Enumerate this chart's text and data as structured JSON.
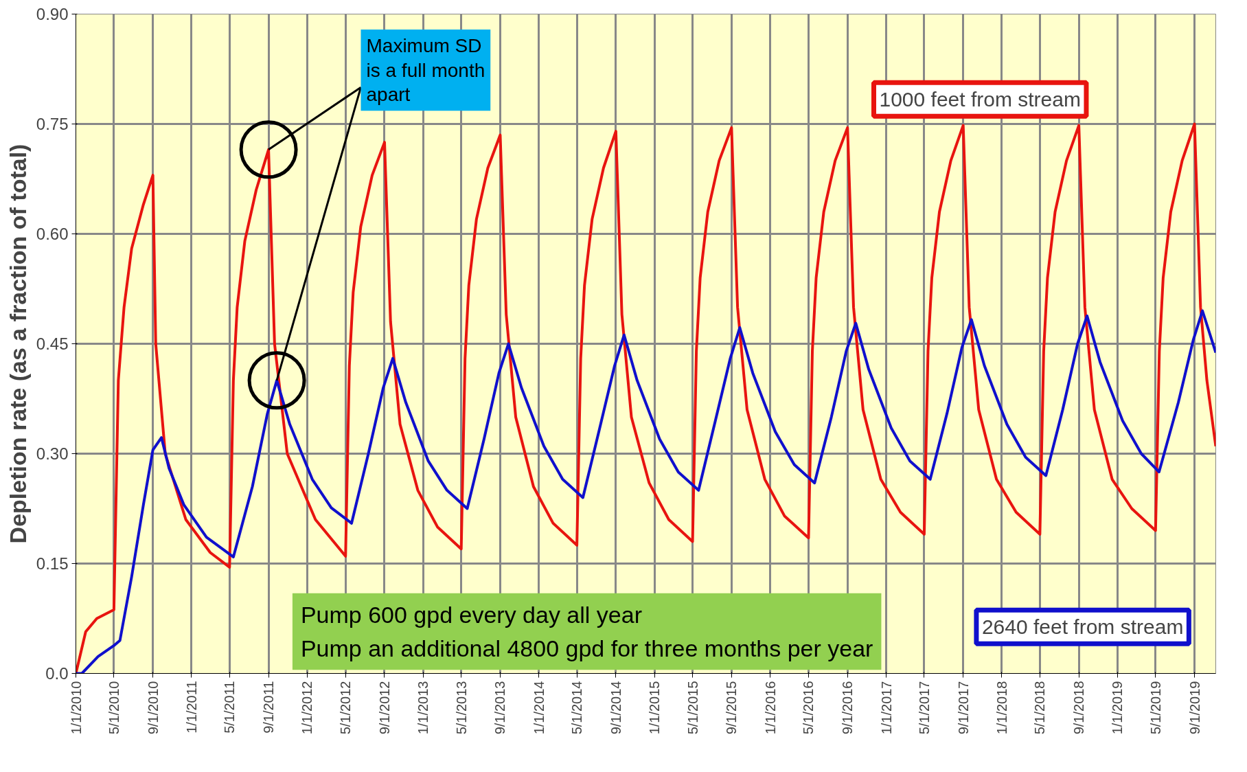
{
  "chart_data": {
    "type": "line",
    "ylabel": "Depletion rate (as a fraction of total)",
    "xlim": [
      "2010-01-01",
      "2019-11-07"
    ],
    "ylim": [
      0,
      0.9
    ],
    "yticks": [
      {
        "value": 0,
        "label": "0.0"
      },
      0.15,
      {
        "value": 0.3,
        "label": "0.30"
      },
      0.45,
      {
        "value": 0.6,
        "label": "0.60"
      },
      0.75,
      {
        "value": 0.9,
        "label": "0.90"
      }
    ],
    "xticks": [
      {
        "value": "2010-01-01",
        "label": "1/1/2010"
      },
      {
        "value": "2010-05-01",
        "label": "5/1/2010"
      },
      {
        "value": "2010-09-01",
        "label": "9/1/2010"
      },
      {
        "value": "2011-01-01",
        "label": "1/1/2011"
      },
      {
        "value": "2011-05-01",
        "label": "5/1/2011"
      },
      {
        "value": "2011-09-01",
        "label": "9/1/2011"
      },
      {
        "value": "2012-01-01",
        "label": "1/1/2012"
      },
      {
        "value": "2012-05-01",
        "label": "5/1/2012"
      },
      {
        "value": "2012-09-01",
        "label": "9/1/2012"
      },
      {
        "value": "2013-01-01",
        "label": "1/1/2013"
      },
      {
        "value": "2013-05-01",
        "label": "5/1/2013"
      },
      {
        "value": "2013-09-01",
        "label": "9/1/2013"
      },
      {
        "value": "2014-01-01",
        "label": "1/1/2014"
      },
      {
        "value": "2014-05-01",
        "label": "5/1/2014"
      },
      {
        "value": "2014-09-01",
        "label": "9/1/2014"
      },
      {
        "value": "2015-01-01",
        "label": "1/1/2015"
      },
      {
        "value": "2015-05-01",
        "label": "5/1/2015"
      },
      {
        "value": "2015-09-01",
        "label": "9/1/2015"
      },
      {
        "value": "2016-01-01",
        "label": "1/1/2016"
      },
      {
        "value": "2016-05-01",
        "label": "5/1/2016"
      },
      {
        "value": "2016-09-01",
        "label": "9/1/2016"
      },
      {
        "value": "2017-01-01",
        "label": "1/1/2017"
      },
      {
        "value": "2017-05-01",
        "label": "5/1/2017"
      },
      {
        "value": "2017-09-01",
        "label": "9/1/2017"
      },
      {
        "value": "2018-01-01",
        "label": "1/1/2018"
      },
      {
        "value": "2018-05-01",
        "label": "5/1/2018"
      },
      {
        "value": "2018-09-01",
        "label": "9/1/2018"
      },
      {
        "value": "2019-01-01",
        "label": "1/1/2019"
      },
      {
        "value": "2019-05-01",
        "label": "5/1/2019"
      },
      {
        "value": "2019-09-01",
        "label": "9/1/2019"
      }
    ],
    "grid": true,
    "legend": false,
    "marker": "none",
    "line_style": "solid",
    "series": [
      {
        "name": "1000 feet from stream",
        "color": "#e8140f",
        "x": [
          "2010-01-01",
          "2010-02-01",
          "2010-03-08",
          "2010-05-01",
          "2010-05-15",
          "2010-06-02",
          "2010-06-26",
          "2010-08-02",
          "2010-09-01",
          "2010-09-10",
          "2010-10-10",
          "2010-12-14",
          "2011-03-01",
          "2011-05-01",
          "2011-05-13",
          "2011-05-25",
          "2011-06-18",
          "2011-07-24",
          "2011-09-01",
          "2011-09-20",
          "2011-10-30",
          "2012-01-27",
          "2012-05-01",
          "2012-05-13",
          "2012-05-25",
          "2012-06-18",
          "2012-07-24",
          "2012-09-01",
          "2012-09-20",
          "2012-10-20",
          "2012-12-15",
          "2013-02-15",
          "2013-05-01",
          "2013-05-13",
          "2013-05-25",
          "2013-06-18",
          "2013-07-24",
          "2013-09-01",
          "2013-09-20",
          "2013-10-20",
          "2013-12-15",
          "2014-02-15",
          "2014-05-01",
          "2014-05-13",
          "2014-05-25",
          "2014-06-18",
          "2014-07-24",
          "2014-09-01",
          "2014-09-20",
          "2014-10-20",
          "2014-12-15",
          "2015-02-15",
          "2015-05-01",
          "2015-05-13",
          "2015-05-25",
          "2015-06-18",
          "2015-07-24",
          "2015-09-01",
          "2015-09-20",
          "2015-10-20",
          "2015-12-15",
          "2016-02-15",
          "2016-05-01",
          "2016-05-13",
          "2016-05-25",
          "2016-06-18",
          "2016-07-24",
          "2016-09-01",
          "2016-09-20",
          "2016-10-20",
          "2016-12-15",
          "2017-02-15",
          "2017-05-01",
          "2017-05-13",
          "2017-05-25",
          "2017-06-18",
          "2017-07-24",
          "2017-09-01",
          "2017-09-20",
          "2017-10-20",
          "2017-12-15",
          "2018-02-15",
          "2018-05-01",
          "2018-05-13",
          "2018-05-25",
          "2018-06-18",
          "2018-07-24",
          "2018-09-01",
          "2018-09-20",
          "2018-10-20",
          "2018-12-15",
          "2019-02-15",
          "2019-05-01",
          "2019-05-13",
          "2019-05-25",
          "2019-06-18",
          "2019-07-24",
          "2019-09-01",
          "2019-09-20",
          "2019-10-10",
          "2019-11-07"
        ],
        "values": [
          0,
          0.057,
          0.075,
          0.087,
          0.4,
          0.5,
          0.58,
          0.64,
          0.68,
          0.45,
          0.3,
          0.21,
          0.165,
          0.145,
          0.4,
          0.5,
          0.59,
          0.66,
          0.715,
          0.45,
          0.3,
          0.21,
          0.16,
          0.42,
          0.52,
          0.61,
          0.68,
          0.725,
          0.48,
          0.34,
          0.25,
          0.2,
          0.17,
          0.43,
          0.53,
          0.62,
          0.69,
          0.735,
          0.49,
          0.35,
          0.255,
          0.205,
          0.175,
          0.43,
          0.53,
          0.62,
          0.69,
          0.74,
          0.49,
          0.35,
          0.26,
          0.21,
          0.18,
          0.44,
          0.54,
          0.63,
          0.7,
          0.745,
          0.5,
          0.36,
          0.265,
          0.215,
          0.185,
          0.44,
          0.54,
          0.63,
          0.7,
          0.745,
          0.5,
          0.36,
          0.265,
          0.22,
          0.19,
          0.44,
          0.54,
          0.63,
          0.7,
          0.748,
          0.5,
          0.36,
          0.265,
          0.22,
          0.19,
          0.44,
          0.54,
          0.63,
          0.7,
          0.748,
          0.5,
          0.36,
          0.265,
          0.225,
          0.195,
          0.44,
          0.54,
          0.63,
          0.7,
          0.75,
          0.5,
          0.4,
          0.31
        ]
      },
      {
        "name": "2640 feet from stream",
        "color": "#1010cc",
        "x": [
          "2010-01-01",
          "2010-01-20",
          "2010-03-12",
          "2010-05-01",
          "2010-05-20",
          "2010-06-26",
          "2010-08-02",
          "2010-09-01",
          "2010-09-28",
          "2010-10-22",
          "2010-12-08",
          "2011-02-17",
          "2011-05-13",
          "2011-07-12",
          "2011-08-28",
          "2011-09-27",
          "2011-11-07",
          "2012-01-17",
          "2012-03-17",
          "2012-05-20",
          "2012-07-12",
          "2012-08-28",
          "2012-09-27",
          "2012-11-07",
          "2013-01-17",
          "2013-03-17",
          "2013-05-20",
          "2013-07-12",
          "2013-08-28",
          "2013-09-27",
          "2013-11-07",
          "2014-01-17",
          "2014-03-17",
          "2014-05-20",
          "2014-07-12",
          "2014-08-28",
          "2014-09-27",
          "2014-11-07",
          "2015-01-17",
          "2015-03-17",
          "2015-05-20",
          "2015-07-12",
          "2015-08-28",
          "2015-09-27",
          "2015-11-07",
          "2016-01-17",
          "2016-03-17",
          "2016-05-20",
          "2016-07-12",
          "2016-08-28",
          "2016-09-27",
          "2016-11-07",
          "2017-01-17",
          "2017-03-17",
          "2017-05-20",
          "2017-07-12",
          "2017-08-28",
          "2017-09-27",
          "2017-11-07",
          "2018-01-17",
          "2018-03-17",
          "2018-05-20",
          "2018-07-12",
          "2018-08-28",
          "2018-09-27",
          "2018-11-07",
          "2019-01-17",
          "2019-03-17",
          "2019-05-12",
          "2019-07-12",
          "2019-08-28",
          "2019-09-26",
          "2019-11-07"
        ],
        "values": [
          0,
          0,
          0.023,
          0.038,
          0.045,
          0.132,
          0.23,
          0.305,
          0.322,
          0.28,
          0.23,
          0.186,
          0.159,
          0.255,
          0.354,
          0.4,
          0.34,
          0.265,
          0.226,
          0.205,
          0.3,
          0.39,
          0.43,
          0.37,
          0.29,
          0.25,
          0.225,
          0.32,
          0.41,
          0.45,
          0.39,
          0.31,
          0.265,
          0.24,
          0.335,
          0.42,
          0.462,
          0.4,
          0.32,
          0.275,
          0.25,
          0.345,
          0.43,
          0.472,
          0.41,
          0.33,
          0.285,
          0.26,
          0.35,
          0.44,
          0.478,
          0.415,
          0.335,
          0.29,
          0.265,
          0.355,
          0.445,
          0.483,
          0.42,
          0.34,
          0.295,
          0.27,
          0.36,
          0.45,
          0.488,
          0.425,
          0.345,
          0.3,
          0.275,
          0.37,
          0.455,
          0.495,
          0.438
        ]
      }
    ],
    "annotations": [
      {
        "text": "Maximum SD\nis a full month\napart",
        "x": "2011-09-01",
        "y": 0.715
      },
      "Pump 600 gpd every day all year\nPump an additional 4800 gpd for three months per year"
    ]
  }
}
